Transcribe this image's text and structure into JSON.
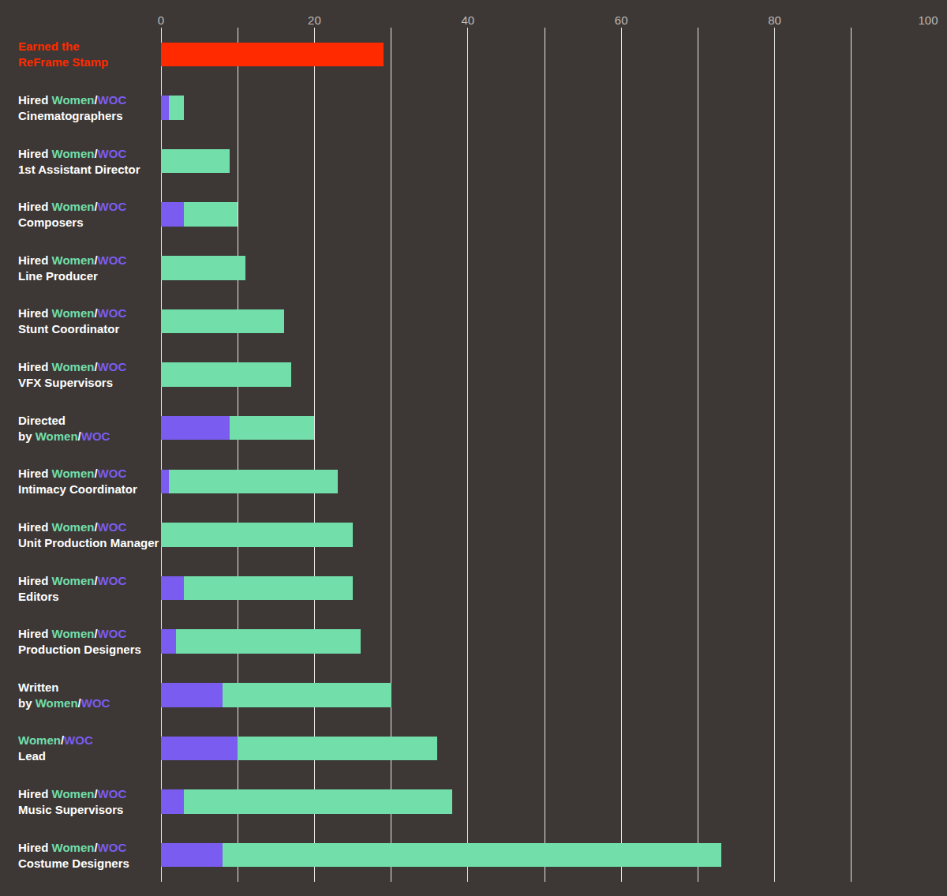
{
  "chart_data": {
    "type": "bar",
    "orientation": "horizontal",
    "stacked": true,
    "grid": true,
    "categories": [
      "Earned the\nReFrame Stamp",
      "Hired Women/WOC\nCinematographers",
      "Hired Women/WOC\n1st Assistant Director",
      "Hired Women/WOC\nComposers",
      "Hired Women/WOC\nLine Producer",
      "Hired Women/WOC\nStunt Coordinator",
      "Hired Women/WOC\nVFX Supervisors",
      "Directed\nby Women/WOC",
      "Hired Women/WOC\nIntimacy Coordinator",
      "Hired Women/WOC\nUnit Production Manager",
      "Hired Women/WOC\nEditors",
      "Hired Women/WOC\nProduction Designers",
      "Written\nby Women/WOC",
      "Women/WOC\nLead",
      "Hired Women/WOC\nMusic Supervisors",
      "Hired Women/WOC\nCostume Designers"
    ],
    "series": [
      {
        "name": "WOC",
        "color": "#7b5cf0",
        "values": [
          null,
          1,
          0,
          3,
          0,
          0,
          0,
          9,
          1,
          0,
          3,
          2,
          8,
          10,
          3,
          8
        ]
      },
      {
        "name": "Women",
        "color": "#72deaa",
        "values": [
          null,
          2,
          9,
          7,
          11,
          16,
          17,
          11,
          22,
          25,
          22,
          24,
          22,
          26,
          35,
          65
        ]
      },
      {
        "name": "Earned the ReFrame Stamp",
        "color": "#ff2a00",
        "values": [
          29,
          null,
          null,
          null,
          null,
          null,
          null,
          null,
          null,
          null,
          null,
          null,
          null,
          null,
          null,
          null
        ]
      }
    ],
    "xlim": [
      0,
      100
    ],
    "xticks": [
      0,
      20,
      40,
      60,
      80,
      100
    ]
  }
}
